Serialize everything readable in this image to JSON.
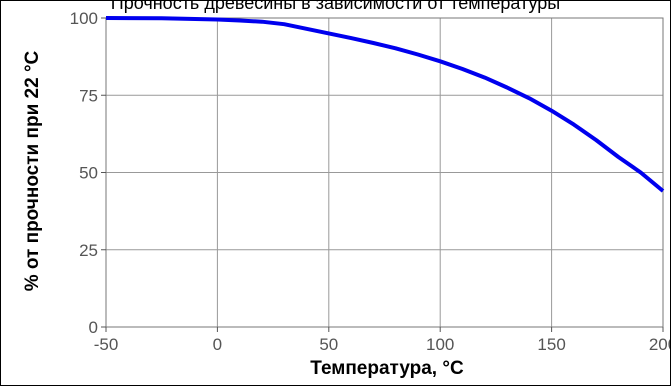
{
  "chart_data": {
    "type": "line",
    "title": "Прочность древесины в зависимости от температуры",
    "xlabel": "Температура, °С",
    "ylabel": "% от прочности при 22 °С",
    "xlim": [
      -50,
      200
    ],
    "ylim": [
      0,
      100
    ],
    "xticks": [
      "-50",
      "0",
      "50",
      "100",
      "150",
      "200"
    ],
    "yticks": [
      "0",
      "25",
      "50",
      "75",
      "100"
    ],
    "grid": true,
    "legend": "none",
    "series": [
      {
        "color": "#0000ee",
        "x": [
          -50,
          -25,
          0,
          10,
          20,
          30,
          40,
          50,
          60,
          70,
          80,
          90,
          100,
          110,
          120,
          130,
          140,
          150,
          160,
          170,
          180,
          190,
          200
        ],
        "y": [
          100,
          99.9,
          99.5,
          99.2,
          98.8,
          98.0,
          96.5,
          95.0,
          93.5,
          91.9,
          90.2,
          88.2,
          86.0,
          83.5,
          80.7,
          77.5,
          74.0,
          70.0,
          65.5,
          60.5,
          55.0,
          50.0,
          44.0
        ]
      }
    ]
  }
}
